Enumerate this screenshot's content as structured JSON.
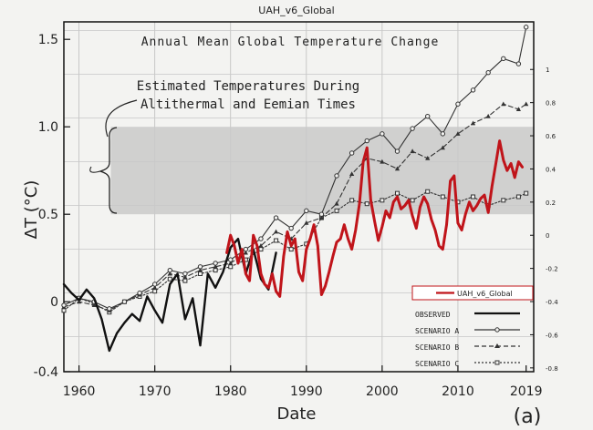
{
  "chart_data": {
    "type": "line",
    "overlay_title": "UAH_v6_Global",
    "title": "Annual Mean Global Temperature Change",
    "annotation": [
      "Estimated Temperatures During",
      "Altithermal and Eemian Times"
    ],
    "xlabel": "Date",
    "ylabel": "ΔT (°C)",
    "panel_label": "(a)",
    "xlim": [
      1958,
      2020
    ],
    "ylim": [
      -0.4,
      1.6
    ],
    "shaded_band": [
      0.5,
      1.0
    ],
    "x_ticks": [
      "1960",
      "1970",
      "1980",
      "1990",
      "2000",
      "2010",
      "2019"
    ],
    "x_tick_values": [
      1960,
      1970,
      1980,
      1990,
      2000,
      2010,
      2019
    ],
    "y_ticks": [
      "-0.4",
      "0",
      "0.5",
      "1.0",
      "1.5"
    ],
    "y_tick_values": [
      -0.4,
      0,
      0.5,
      1.0,
      1.5
    ],
    "right_axis": {
      "label_values": [
        1,
        0.8,
        0.6,
        0.4,
        0.2,
        0,
        -0.2,
        -0.4,
        -0.6,
        -0.8
      ],
      "labels": [
        "1",
        "0.8",
        "0.6",
        "0.4",
        "0.2",
        "0",
        "-0.2",
        "-0.4",
        "-0.6",
        "-0.8"
      ],
      "right_zero_at_left": 0.38,
      "right_per_left": 1.055
    },
    "legend": [
      {
        "key": "uah",
        "label": "UAH_v6_Global"
      },
      {
        "key": "observed",
        "label": "OBSERVED"
      },
      {
        "key": "scenario_a",
        "label": "SCENARIO A"
      },
      {
        "key": "scenario_b",
        "label": "SCENARIO B"
      },
      {
        "key": "scenario_c",
        "label": "SCENARIO C"
      }
    ],
    "series": [
      {
        "name": "OBSERVED",
        "key": "observed",
        "color": "#111111",
        "x": [
          1958,
          1959,
          1960,
          1961,
          1962,
          1963,
          1964,
          1965,
          1966,
          1967,
          1968,
          1969,
          1970,
          1971,
          1972,
          1973,
          1974,
          1975,
          1976,
          1977,
          1978,
          1979,
          1980,
          1981,
          1982,
          1983,
          1984,
          1985,
          1986
        ],
        "y": [
          0.1,
          0.05,
          0.01,
          0.07,
          0.02,
          -0.1,
          -0.28,
          -0.18,
          -0.12,
          -0.07,
          -0.11,
          0.03,
          -0.05,
          -0.12,
          0.1,
          0.16,
          -0.1,
          0.02,
          -0.25,
          0.16,
          0.08,
          0.17,
          0.31,
          0.36,
          0.16,
          0.3,
          0.13,
          0.07,
          0.28
        ]
      },
      {
        "name": "SCENARIO A",
        "key": "scenario_a",
        "color": "#333333",
        "x": [
          1958,
          1960,
          1962,
          1964,
          1966,
          1968,
          1970,
          1972,
          1974,
          1976,
          1978,
          1980,
          1982,
          1984,
          1986,
          1988,
          1990,
          1992,
          1994,
          1996,
          1998,
          2000,
          2002,
          2004,
          2006,
          2008,
          2010,
          2012,
          2014,
          2016,
          2018,
          2019
        ],
        "y": [
          -0.02,
          0.02,
          0.0,
          -0.04,
          0.0,
          0.05,
          0.1,
          0.18,
          0.16,
          0.2,
          0.22,
          0.24,
          0.3,
          0.36,
          0.48,
          0.42,
          0.52,
          0.5,
          0.72,
          0.85,
          0.92,
          0.96,
          0.86,
          0.99,
          1.06,
          0.96,
          1.13,
          1.21,
          1.31,
          1.39,
          1.36,
          1.57
        ]
      },
      {
        "name": "SCENARIO B",
        "key": "scenario_b",
        "color": "#333333",
        "x": [
          1958,
          1960,
          1962,
          1964,
          1966,
          1968,
          1970,
          1972,
          1974,
          1976,
          1978,
          1980,
          1982,
          1984,
          1986,
          1988,
          1990,
          1992,
          1994,
          1996,
          1998,
          2000,
          2002,
          2004,
          2006,
          2008,
          2010,
          2012,
          2014,
          2016,
          2018,
          2019
        ],
        "y": [
          -0.03,
          0.0,
          -0.02,
          -0.05,
          0.0,
          0.04,
          0.08,
          0.16,
          0.14,
          0.18,
          0.2,
          0.22,
          0.28,
          0.32,
          0.4,
          0.36,
          0.45,
          0.48,
          0.56,
          0.73,
          0.82,
          0.8,
          0.76,
          0.86,
          0.82,
          0.88,
          0.96,
          1.02,
          1.06,
          1.13,
          1.1,
          1.13
        ]
      },
      {
        "name": "SCENARIO C",
        "key": "scenario_c",
        "color": "#333333",
        "x": [
          1958,
          1960,
          1962,
          1964,
          1966,
          1968,
          1970,
          1972,
          1974,
          1976,
          1978,
          1980,
          1982,
          1984,
          1986,
          1988,
          1990,
          1992,
          1994,
          1996,
          1998,
          2000,
          2002,
          2004,
          2006,
          2008,
          2010,
          2012,
          2014,
          2016,
          2018,
          2019
        ],
        "y": [
          -0.05,
          0.02,
          -0.01,
          -0.06,
          0.0,
          0.03,
          0.06,
          0.13,
          0.12,
          0.16,
          0.18,
          0.2,
          0.24,
          0.3,
          0.35,
          0.3,
          0.33,
          0.48,
          0.52,
          0.58,
          0.56,
          0.58,
          0.62,
          0.58,
          0.63,
          0.6,
          0.57,
          0.6,
          0.55,
          0.58,
          0.6,
          0.62
        ]
      },
      {
        "name": "UAH_v6_Global",
        "key": "uah",
        "color": "#c0141a",
        "x": [
          1979.5,
          1980,
          1980.5,
          1981,
          1981.5,
          1982,
          1982.5,
          1983,
          1983.5,
          1984,
          1984.5,
          1985,
          1985.5,
          1986,
          1986.5,
          1987,
          1987.5,
          1988,
          1988.5,
          1989,
          1989.5,
          1990,
          1990.5,
          1991,
          1991.5,
          1992,
          1992.5,
          1993,
          1993.5,
          1994,
          1994.5,
          1995,
          1995.5,
          1996,
          1996.5,
          1997,
          1997.5,
          1998,
          1998.5,
          1999,
          1999.5,
          2000,
          2000.5,
          2001,
          2001.5,
          2002,
          2002.5,
          2003,
          2003.5,
          2004,
          2004.5,
          2005,
          2005.5,
          2006,
          2006.5,
          2007,
          2007.5,
          2008,
          2008.5,
          2009,
          2009.5,
          2010,
          2010.5,
          2011,
          2011.5,
          2012,
          2012.5,
          2013,
          2013.5,
          2014,
          2014.5,
          2015,
          2015.5,
          2016,
          2016.5,
          2017,
          2017.5,
          2018,
          2018.5
        ],
        "y": [
          0.28,
          0.38,
          0.32,
          0.22,
          0.3,
          0.16,
          0.12,
          0.38,
          0.32,
          0.16,
          0.1,
          0.08,
          0.16,
          0.06,
          0.03,
          0.26,
          0.4,
          0.32,
          0.36,
          0.17,
          0.12,
          0.3,
          0.36,
          0.44,
          0.32,
          0.04,
          0.09,
          0.17,
          0.26,
          0.34,
          0.36,
          0.44,
          0.36,
          0.3,
          0.41,
          0.56,
          0.8,
          0.88,
          0.58,
          0.46,
          0.35,
          0.43,
          0.52,
          0.48,
          0.57,
          0.6,
          0.53,
          0.55,
          0.58,
          0.49,
          0.42,
          0.54,
          0.6,
          0.56,
          0.47,
          0.41,
          0.32,
          0.3,
          0.44,
          0.69,
          0.72,
          0.45,
          0.41,
          0.5,
          0.57,
          0.52,
          0.55,
          0.59,
          0.61,
          0.51,
          0.66,
          0.79,
          0.92,
          0.81,
          0.75,
          0.79,
          0.71,
          0.8,
          0.77
        ]
      }
    ]
  }
}
